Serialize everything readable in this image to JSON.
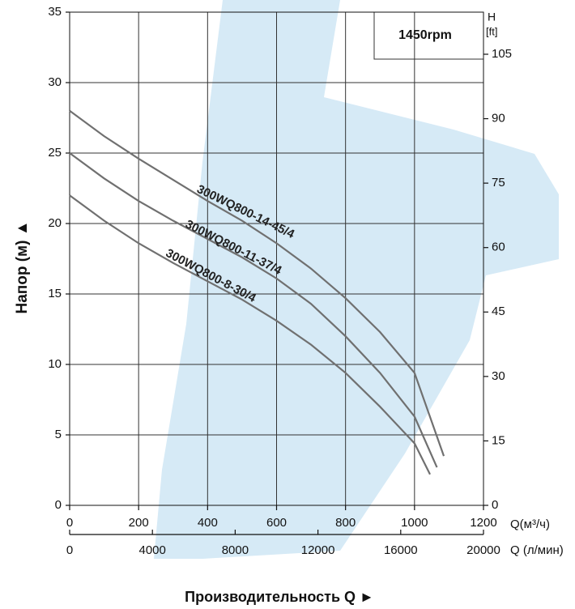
{
  "chart_data": {
    "type": "line",
    "y_label": "Напор (м)  ▲",
    "x_label": "Производительность Q  ►",
    "x_unit": "Q(м³/ч)",
    "x2_unit": "Q (л/мин)",
    "y2_label": "H",
    "y2_unit": "[ft]",
    "annotation": "1450rpm",
    "xlim": [
      0,
      1200
    ],
    "xticks": [
      0,
      200,
      400,
      600,
      800,
      1000,
      1200
    ],
    "x2lim": [
      0,
      20000
    ],
    "x2ticks": [
      0,
      4000,
      8000,
      12000,
      16000,
      20000
    ],
    "ylim": [
      0,
      35
    ],
    "yticks": [
      0,
      5,
      10,
      15,
      20,
      25,
      30,
      35
    ],
    "y2lim": [
      0,
      114.8
    ],
    "y2ticks": [
      0,
      15,
      30,
      45,
      60,
      75,
      90,
      105
    ],
    "grid": true,
    "series": [
      {
        "name": "300WQ800-14-45/4",
        "color": "#707070",
        "x": [
          0,
          100,
          200,
          300,
          400,
          500,
          600,
          700,
          800,
          900,
          1000,
          1085
        ],
        "values": [
          28,
          26.2,
          24.6,
          23.1,
          21.6,
          20.2,
          18.6,
          16.8,
          14.7,
          12.3,
          9.4,
          3.5
        ]
      },
      {
        "name": "300WQ800-11-37/4",
        "color": "#707070",
        "x": [
          0,
          100,
          200,
          300,
          400,
          500,
          600,
          700,
          800,
          900,
          1000,
          1065
        ],
        "values": [
          25,
          23.2,
          21.6,
          20.2,
          18.9,
          17.6,
          16.1,
          14.3,
          12.0,
          9.4,
          6.3,
          2.7
        ]
      },
      {
        "name": "300WQ800-8-30/4",
        "color": "#707070",
        "x": [
          0,
          100,
          200,
          300,
          400,
          500,
          600,
          700,
          800,
          900,
          1000,
          1045
        ],
        "values": [
          22,
          20.2,
          18.6,
          17.2,
          15.9,
          14.6,
          13.1,
          11.4,
          9.4,
          7.0,
          4.4,
          2.2
        ]
      }
    ]
  }
}
